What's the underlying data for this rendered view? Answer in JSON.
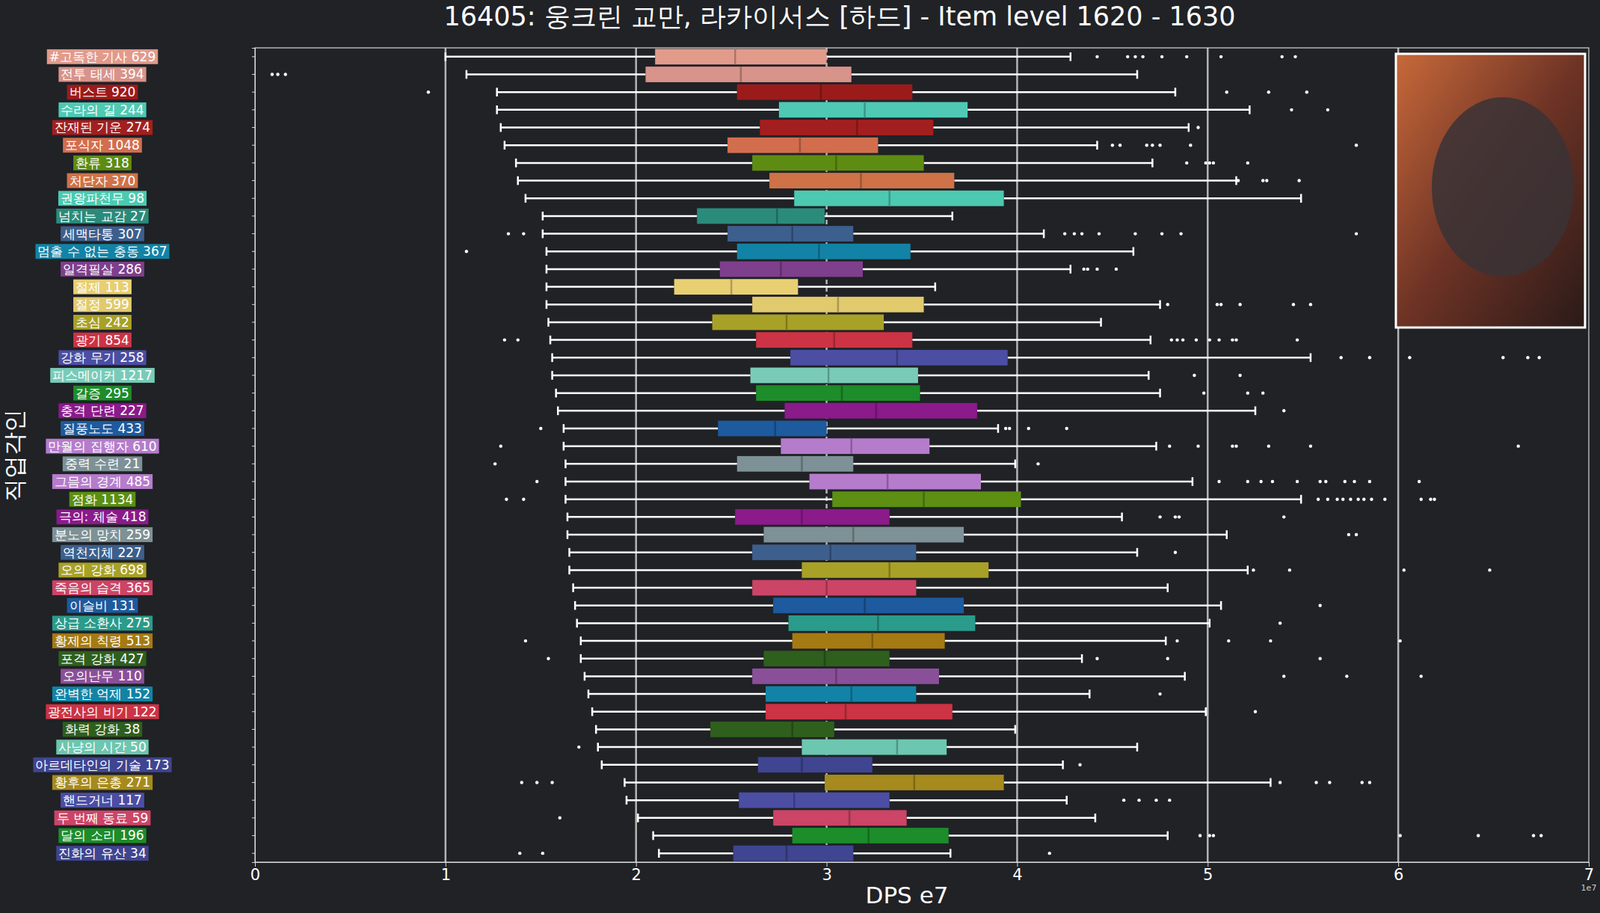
{
  "chart_data": {
    "type": "box",
    "orientation": "horizontal",
    "title": "16405: 웅크린 교만, 라카이서스 [하드] - Item level 1620 - 1630",
    "x_label": "DPS e7",
    "y_label": "직업각인",
    "offset_label": "1e7",
    "xlim": [
      0,
      7
    ],
    "xticks": [
      0,
      1,
      2,
      3,
      4,
      5,
      6,
      7
    ],
    "grid": true,
    "reference_line": 3,
    "categories": [
      "#고독한 기사 629",
      "전투 태세 394",
      "버스트 920",
      "수라의 길 244",
      "잔재된 기운 274",
      "포식자 1048",
      "환류 318",
      "처단자 370",
      "권왕파천무 98",
      "넘치는 교감 27",
      "세맥타통 307",
      "멈출 수 없는 충동 367",
      "일격필살 286",
      "절제 113",
      "절정 599",
      "초심 242",
      "광기 854",
      "강화 무기 258",
      "피스메이커 1217",
      "갈증 295",
      "충격 단련 227",
      "질풍노도 433",
      "만월의 집행자 610",
      "중력 수련 21",
      "그믐의 경계 485",
      "점화 1134",
      "극의: 체술 418",
      "분노의 망치 259",
      "역천지체 227",
      "오의 강화 698",
      "죽음의 습격 365",
      "이슬비 131",
      "상급 소환사 275",
      "황제의 칙령 513",
      "포격 강화 427",
      "오의난무 110",
      "완벽한 억제 152",
      "광전사의 비기 122",
      "화력 강화 38",
      "사냥의 시간 50",
      "아르데타인의 기술 173",
      "황후의 은총 271",
      "핸드거너 117",
      "두 번째 동료 59",
      "달의 소리 196",
      "진화의 유산 34"
    ],
    "colors": [
      "#e29a8b",
      "#d8938a",
      "#9b1b1b",
      "#4fc9b3",
      "#a31f1f",
      "#d26e4e",
      "#5e8c13",
      "#cf7248",
      "#4cc9b1",
      "#2b8b7a",
      "#3c5f8d",
      "#1283a6",
      "#7e3f8c",
      "#e8cf72",
      "#e0ca6c",
      "#a8a127",
      "#cc3344",
      "#4b4ea3",
      "#79cbb8",
      "#1d8c2a",
      "#8b1a8b",
      "#1d5a9e",
      "#b57ccb",
      "#7d9196",
      "#b57ccb",
      "#5c8f12",
      "#8b1a8b",
      "#7d9196",
      "#3c5f8d",
      "#a8a127",
      "#cc4466",
      "#1d5a9e",
      "#2b9b8b",
      "#a57a12",
      "#2f5f1d",
      "#8a4f99",
      "#1283a6",
      "#cc3344",
      "#2f5f1d",
      "#6dc6b0",
      "#3f4590",
      "#a68a1d",
      "#4b4ea3",
      "#cc4466",
      "#1d8c2a",
      "#3f4590"
    ],
    "whisker_low": [
      1.0,
      1.11,
      1.27,
      1.27,
      1.29,
      1.31,
      1.37,
      1.38,
      1.42,
      1.51,
      1.51,
      1.53,
      1.53,
      1.53,
      1.53,
      1.54,
      1.55,
      1.56,
      1.56,
      1.58,
      1.59,
      1.62,
      1.62,
      1.63,
      1.63,
      1.63,
      1.64,
      1.64,
      1.65,
      1.65,
      1.67,
      1.68,
      1.69,
      1.71,
      1.71,
      1.73,
      1.75,
      1.77,
      1.79,
      1.8,
      1.82,
      1.94,
      1.95,
      2.01,
      2.09,
      2.12
    ],
    "q1": [
      2.1,
      2.05,
      2.53,
      2.75,
      2.65,
      2.48,
      2.61,
      2.7,
      2.83,
      2.32,
      2.48,
      2.53,
      2.44,
      2.2,
      2.61,
      2.4,
      2.63,
      2.81,
      2.6,
      2.63,
      2.78,
      2.43,
      2.76,
      2.53,
      2.91,
      3.03,
      2.52,
      2.67,
      2.61,
      2.87,
      2.61,
      2.72,
      2.8,
      2.82,
      2.67,
      2.61,
      2.68,
      2.68,
      2.39,
      2.87,
      2.64,
      2.99,
      2.54,
      2.72,
      2.82,
      2.51
    ],
    "median": [
      2.52,
      2.55,
      2.97,
      3.2,
      3.16,
      2.86,
      3.05,
      3.18,
      3.33,
      2.74,
      2.82,
      2.96,
      2.76,
      2.5,
      3.06,
      2.79,
      3.04,
      3.37,
      3.01,
      3.08,
      3.26,
      2.73,
      3.13,
      2.87,
      3.32,
      3.51,
      2.87,
      3.14,
      3.02,
      3.33,
      3.0,
      3.2,
      3.27,
      3.24,
      2.99,
      3.05,
      3.13,
      3.1,
      2.82,
      3.37,
      2.87,
      3.46,
      2.83,
      3.12,
      3.22,
      2.79
    ],
    "q3": [
      3.0,
      3.13,
      3.45,
      3.74,
      3.56,
      3.27,
      3.51,
      3.67,
      3.93,
      2.99,
      3.14,
      3.44,
      3.19,
      2.85,
      3.51,
      3.3,
      3.45,
      3.95,
      3.48,
      3.49,
      3.79,
      3.0,
      3.54,
      3.14,
      3.81,
      4.02,
      3.33,
      3.72,
      3.47,
      3.85,
      3.47,
      3.72,
      3.78,
      3.62,
      3.33,
      3.59,
      3.47,
      3.66,
      3.04,
      3.63,
      3.24,
      3.93,
      3.33,
      3.42,
      3.64,
      3.14
    ],
    "whisker_high": [
      4.28,
      4.63,
      4.83,
      5.22,
      4.9,
      4.42,
      4.71,
      5.15,
      5.49,
      3.66,
      4.14,
      4.61,
      4.28,
      3.57,
      4.75,
      4.44,
      4.7,
      5.54,
      4.69,
      4.75,
      5.25,
      3.9,
      4.73,
      3.99,
      4.92,
      5.49,
      4.55,
      5.1,
      4.63,
      5.21,
      4.79,
      5.07,
      5.01,
      4.78,
      4.34,
      4.88,
      4.38,
      4.99,
      3.99,
      4.63,
      4.24,
      5.33,
      4.26,
      4.41,
      4.79,
      3.65
    ],
    "outliers": [
      [
        4.42,
        4.58,
        4.62,
        4.66,
        4.76,
        4.89,
        5.07,
        5.39,
        5.46
      ],
      [
        0.09,
        0.12,
        0.16
      ],
      [
        0.91,
        5.1,
        5.32,
        5.52
      ],
      [
        5.44,
        5.63
      ],
      [
        4.95
      ],
      [
        4.5,
        4.54,
        4.68,
        4.71,
        4.75,
        4.91,
        5.78
      ],
      [
        4.89,
        4.99,
        5.01,
        5.03,
        5.21
      ],
      [
        5.16,
        5.29,
        5.31,
        5.48
      ],
      [],
      [],
      [
        1.33,
        1.41,
        4.25,
        4.3,
        4.34,
        4.43,
        4.62,
        4.76,
        4.86,
        5.78
      ],
      [
        1.11
      ],
      [
        4.35,
        4.37,
        4.42,
        4.52
      ],
      [],
      [
        4.79,
        5.05,
        5.07,
        5.17,
        5.45,
        5.54
      ],
      [],
      [
        1.31,
        1.38,
        4.81,
        4.84,
        4.87,
        4.94,
        5.01,
        5.06,
        5.13,
        5.15,
        5.47
      ],
      [
        5.7,
        5.85,
        6.06,
        6.55,
        6.68,
        6.74
      ],
      [
        4.93,
        5.17
      ],
      [
        4.98,
        5.21,
        5.29
      ],
      [
        5.4
      ],
      [
        1.5,
        3.94,
        3.96,
        4.06,
        4.26
      ],
      [
        1.29,
        4.8,
        4.95,
        5.13,
        5.15,
        5.32,
        5.54,
        6.63
      ],
      [
        1.26,
        4.11
      ],
      [
        1.48,
        5.06,
        5.21,
        5.28,
        5.34,
        5.47,
        5.59,
        5.62,
        5.72,
        5.77,
        5.85,
        6.11
      ],
      [
        1.32,
        1.41,
        5.58,
        5.63,
        5.68,
        5.71,
        5.75,
        5.79,
        5.82,
        5.86,
        5.93,
        6.12,
        6.17,
        6.19
      ],
      [
        4.75,
        4.83,
        4.85,
        5.4
      ],
      [
        5.74,
        5.78
      ],
      [
        4.83
      ],
      [
        5.24,
        5.43,
        6.03,
        6.48
      ],
      [],
      [
        5.59
      ],
      [
        5.38
      ],
      [
        1.42,
        4.84,
        5.11,
        5.33,
        6.01
      ],
      [
        1.54,
        4.42,
        4.79,
        5.59
      ],
      [
        5.4,
        5.73,
        6.12
      ],
      [
        4.75
      ],
      [
        5.25
      ],
      [],
      [
        1.7
      ],
      [
        4.33
      ],
      [
        1.4,
        1.48,
        1.56,
        5.38,
        5.57,
        5.64,
        5.81,
        5.85
      ],
      [
        4.56,
        4.64,
        4.73,
        4.8
      ],
      [
        1.6
      ],
      [
        4.96,
        5.01,
        5.03,
        6.01,
        6.42,
        6.71,
        6.75
      ],
      [
        1.39,
        1.51,
        4.17
      ]
    ]
  }
}
